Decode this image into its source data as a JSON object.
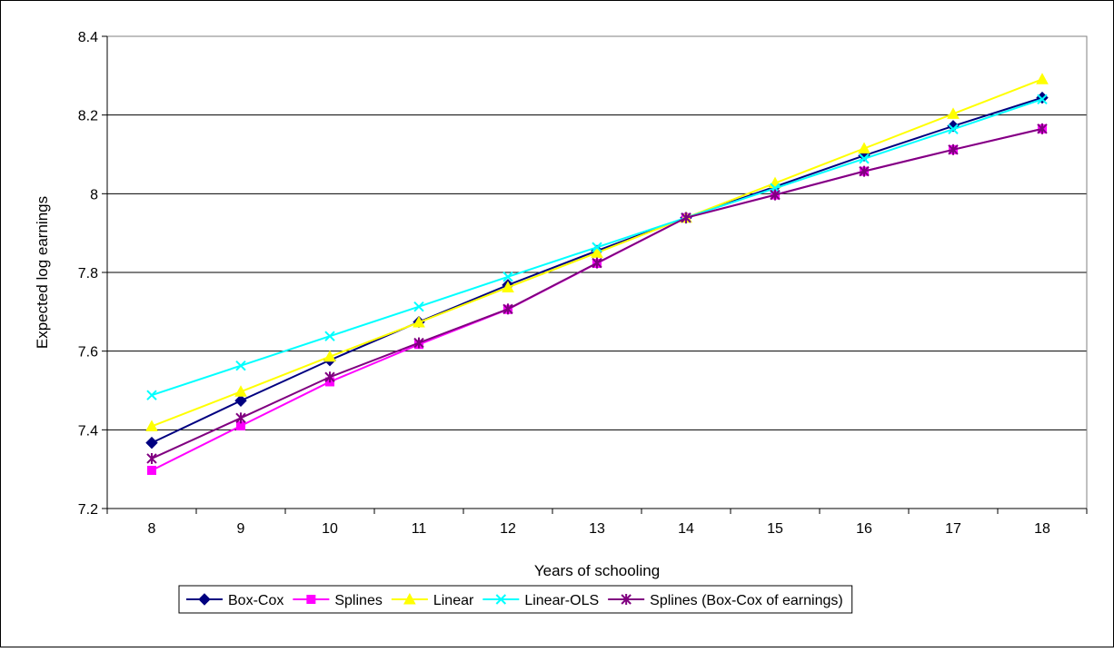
{
  "chart_data": {
    "type": "line",
    "title": "",
    "xlabel": "Years of schooling",
    "ylabel": "Expected log earnings",
    "categories": [
      "8",
      "9",
      "10",
      "11",
      "12",
      "13",
      "14",
      "15",
      "16",
      "17",
      "18"
    ],
    "ylim": [
      7.2,
      8.4
    ],
    "yticks": [
      "7.2",
      "7.4",
      "7.6",
      "7.8",
      "8",
      "8.2",
      "8.4"
    ],
    "grid": "horizontal",
    "legend_position": "bottom",
    "series": [
      {
        "name": "Box-Cox",
        "color": "#000080",
        "marker": "diamond",
        "values": [
          7.367,
          7.474,
          7.577,
          7.674,
          7.768,
          7.855,
          7.939,
          8.018,
          8.097,
          8.172,
          8.244
        ]
      },
      {
        "name": "Splines",
        "color": "#FF00FF",
        "marker": "square",
        "values": [
          7.297,
          7.41,
          7.522,
          7.617,
          7.706,
          7.823,
          7.939,
          7.997,
          8.057,
          8.112,
          8.165
        ]
      },
      {
        "name": "Linear",
        "color": "#FFFF00",
        "marker": "triangle",
        "values": [
          7.409,
          7.497,
          7.586,
          7.673,
          7.762,
          7.85,
          7.939,
          8.027,
          8.115,
          8.203,
          8.291
        ]
      },
      {
        "name": "Linear-OLS",
        "color": "#00FFFF",
        "marker": "x",
        "values": [
          7.488,
          7.563,
          7.638,
          7.713,
          7.789,
          7.864,
          7.939,
          8.014,
          8.089,
          8.164,
          8.24
        ]
      },
      {
        "name": "Splines (Box-Cox of earnings)",
        "color": "#800080",
        "marker": "asterisk",
        "values": [
          7.327,
          7.43,
          7.534,
          7.621,
          7.707,
          7.824,
          7.939,
          7.997,
          8.057,
          8.112,
          8.165
        ]
      }
    ]
  }
}
